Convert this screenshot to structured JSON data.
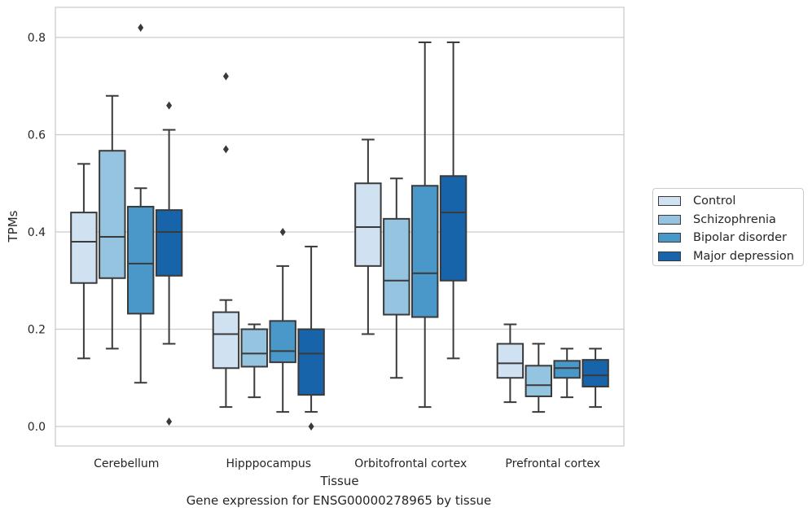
{
  "chart_data": {
    "type": "box",
    "title": "",
    "caption": "Gene expression for ENSG00000278965 by tissue",
    "xlabel": "Tissue",
    "ylabel": "TPMs",
    "ylim": [
      -0.04,
      0.86
    ],
    "yticks": [
      "0.0",
      "0.2",
      "0.4",
      "0.6",
      "0.8"
    ],
    "grid": true,
    "legend_position": "center-right",
    "categories": [
      "Cerebellum",
      "Hipppocampus",
      "Orbitofrontal cortex",
      "Prefrontal cortex"
    ],
    "series": [
      {
        "name": "Control",
        "color": "#d0e1f2",
        "boxes": [
          {
            "whisker_low": 0.14,
            "q1": 0.295,
            "median": 0.38,
            "q3": 0.44,
            "whisker_high": 0.54,
            "outliers": []
          },
          {
            "whisker_low": 0.04,
            "q1": 0.12,
            "median": 0.19,
            "q3": 0.235,
            "whisker_high": 0.26,
            "outliers": [
              0.72,
              0.57
            ]
          },
          {
            "whisker_low": 0.19,
            "q1": 0.33,
            "median": 0.41,
            "q3": 0.5,
            "whisker_high": 0.59,
            "outliers": []
          },
          {
            "whisker_low": 0.05,
            "q1": 0.1,
            "median": 0.13,
            "q3": 0.17,
            "whisker_high": 0.21,
            "outliers": []
          }
        ]
      },
      {
        "name": "Schizophrenia",
        "color": "#94c4df",
        "boxes": [
          {
            "whisker_low": 0.16,
            "q1": 0.305,
            "median": 0.39,
            "q3": 0.567,
            "whisker_high": 0.68,
            "outliers": []
          },
          {
            "whisker_low": 0.06,
            "q1": 0.123,
            "median": 0.15,
            "q3": 0.2,
            "whisker_high": 0.21,
            "outliers": []
          },
          {
            "whisker_low": 0.1,
            "q1": 0.23,
            "median": 0.3,
            "q3": 0.427,
            "whisker_high": 0.51,
            "outliers": []
          },
          {
            "whisker_low": 0.03,
            "q1": 0.062,
            "median": 0.085,
            "q3": 0.125,
            "whisker_high": 0.17,
            "outliers": []
          }
        ]
      },
      {
        "name": "Bipolar disorder",
        "color": "#4a98c9",
        "boxes": [
          {
            "whisker_low": 0.09,
            "q1": 0.232,
            "median": 0.335,
            "q3": 0.452,
            "whisker_high": 0.49,
            "outliers": [
              0.82
            ]
          },
          {
            "whisker_low": 0.03,
            "q1": 0.132,
            "median": 0.155,
            "q3": 0.217,
            "whisker_high": 0.33,
            "outliers": [
              0.4
            ]
          },
          {
            "whisker_low": 0.04,
            "q1": 0.225,
            "median": 0.315,
            "q3": 0.495,
            "whisker_high": 0.79,
            "outliers": []
          },
          {
            "whisker_low": 0.06,
            "q1": 0.1,
            "median": 0.12,
            "q3": 0.135,
            "whisker_high": 0.16,
            "outliers": []
          }
        ]
      },
      {
        "name": "Major depression",
        "color": "#1764ab",
        "boxes": [
          {
            "whisker_low": 0.17,
            "q1": 0.31,
            "median": 0.4,
            "q3": 0.445,
            "whisker_high": 0.61,
            "outliers": [
              0.66,
              0.01
            ]
          },
          {
            "whisker_low": 0.03,
            "q1": 0.065,
            "median": 0.15,
            "q3": 0.2,
            "whisker_high": 0.37,
            "outliers": [
              0.0
            ]
          },
          {
            "whisker_low": 0.14,
            "q1": 0.3,
            "median": 0.44,
            "q3": 0.515,
            "whisker_high": 0.79,
            "outliers": []
          },
          {
            "whisker_low": 0.04,
            "q1": 0.082,
            "median": 0.105,
            "q3": 0.137,
            "whisker_high": 0.16,
            "outliers": []
          }
        ]
      }
    ]
  }
}
